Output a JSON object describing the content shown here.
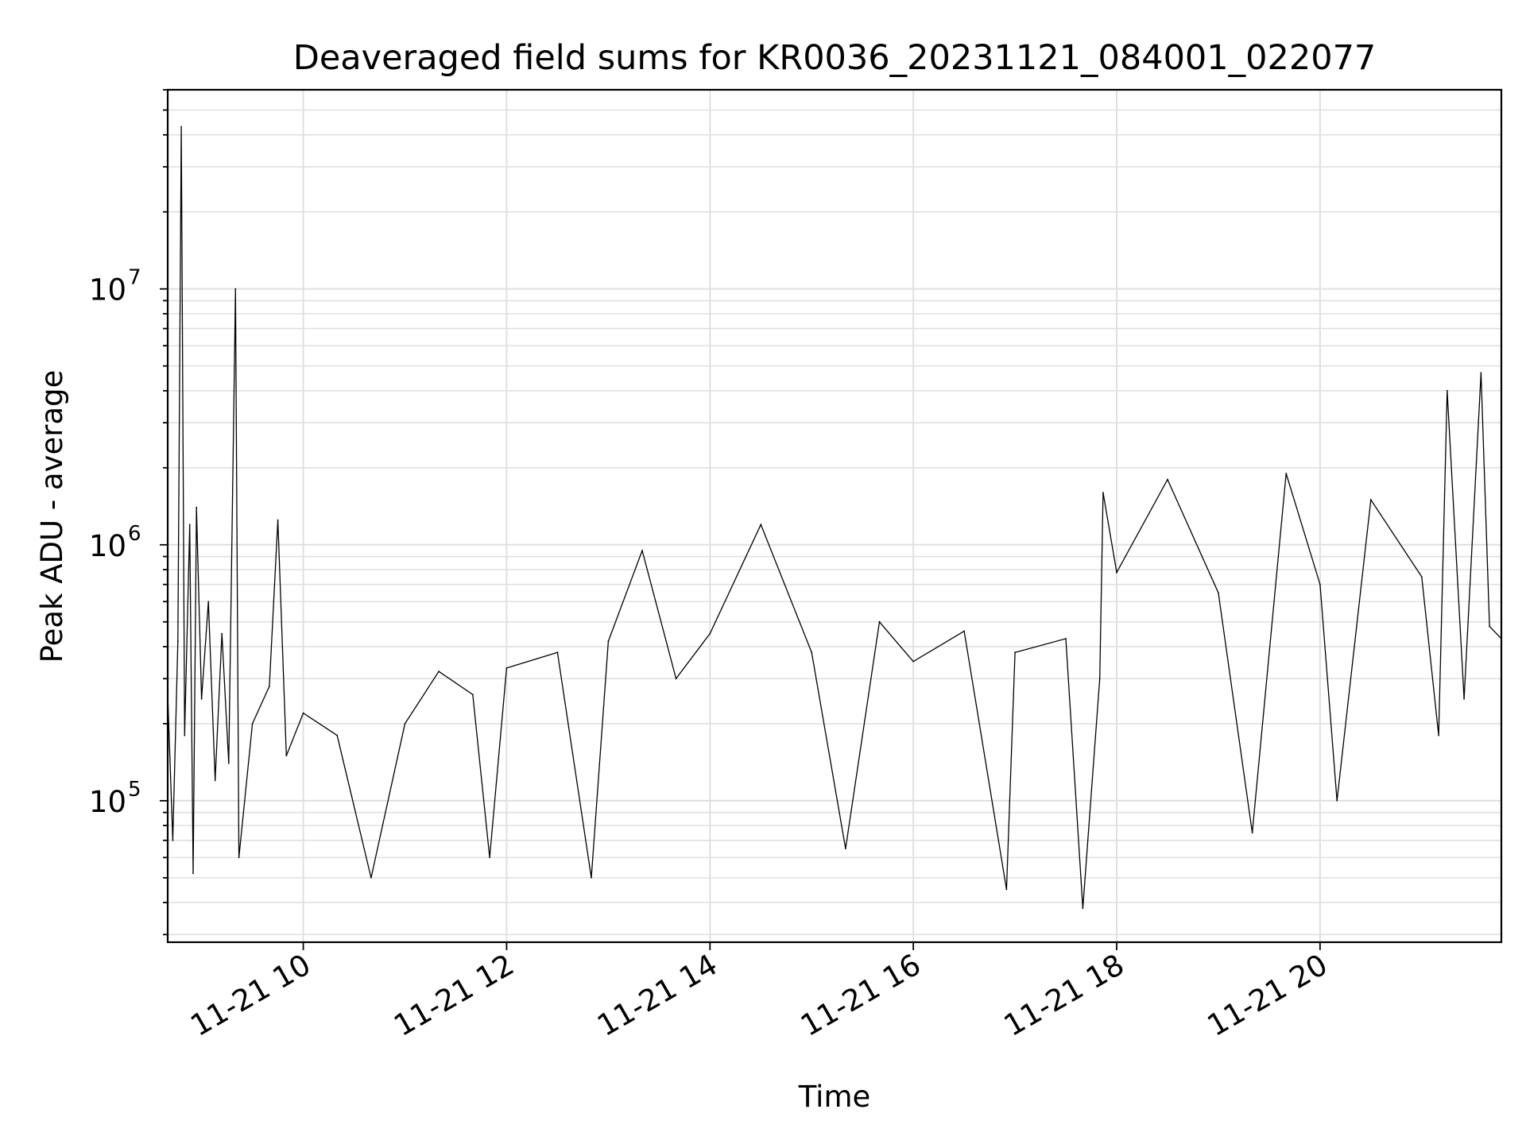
{
  "chart_data": {
    "type": "line",
    "title": "Deaveraged field sums for KR0036_20231121_084001_022077",
    "xlabel": "Time",
    "ylabel": "Peak ADU - average",
    "xscale": "time",
    "yscale": "log",
    "xlim": [
      "2023-11-21 08:40",
      "2023-11-21 21:47"
    ],
    "ylim": [
      28000,
      60000000
    ],
    "x_ticks": [
      "11-21 10",
      "11-21 12",
      "11-21 14",
      "11-21 16",
      "11-21 18",
      "11-21 20"
    ],
    "x_tick_times": [
      "2023-11-21 10:00",
      "2023-11-21 12:00",
      "2023-11-21 14:00",
      "2023-11-21 16:00",
      "2023-11-21 18:00",
      "2023-11-21 20:00"
    ],
    "y_ticks": [
      {
        "base": "10",
        "exp": "5",
        "value": 100000
      },
      {
        "base": "10",
        "exp": "6",
        "value": 1000000
      },
      {
        "base": "10",
        "exp": "7",
        "value": 10000000
      }
    ],
    "grid": true,
    "line_color": "#000000",
    "grid_color": "#e0e0e0",
    "series": [
      {
        "points": [
          [
            "2023-11-21 08:40",
            260000
          ],
          [
            "2023-11-21 08:43",
            70000
          ],
          [
            "2023-11-21 08:46",
            420000
          ],
          [
            "2023-11-21 08:48",
            43000000
          ],
          [
            "2023-11-21 08:50",
            180000
          ],
          [
            "2023-11-21 08:53",
            1200000
          ],
          [
            "2023-11-21 08:55",
            52000
          ],
          [
            "2023-11-21 08:57",
            1400000
          ],
          [
            "2023-11-21 09:00",
            250000
          ],
          [
            "2023-11-21 09:04",
            600000
          ],
          [
            "2023-11-21 09:08",
            120000
          ],
          [
            "2023-11-21 09:12",
            450000
          ],
          [
            "2023-11-21 09:16",
            140000
          ],
          [
            "2023-11-21 09:20",
            10000000
          ],
          [
            "2023-11-21 09:22",
            60000
          ],
          [
            "2023-11-21 09:30",
            200000
          ],
          [
            "2023-11-21 09:40",
            280000
          ],
          [
            "2023-11-21 09:50",
            150000
          ],
          [
            "2023-11-21 10:00",
            220000
          ],
          [
            "2023-11-21 09:45",
            1250000
          ],
          [
            "2023-11-21 10:20",
            180000
          ],
          [
            "2023-11-21 10:40",
            50000
          ],
          [
            "2023-11-21 11:00",
            200000
          ],
          [
            "2023-11-21 11:20",
            320000
          ],
          [
            "2023-11-21 11:40",
            260000
          ],
          [
            "2023-11-21 11:50",
            60000
          ],
          [
            "2023-11-21 12:00",
            330000
          ],
          [
            "2023-11-21 12:30",
            380000
          ],
          [
            "2023-11-21 12:50",
            50000
          ],
          [
            "2023-11-21 13:00",
            420000
          ],
          [
            "2023-11-21 13:20",
            950000
          ],
          [
            "2023-11-21 13:40",
            300000
          ],
          [
            "2023-11-21 14:00",
            450000
          ],
          [
            "2023-11-21 14:30",
            1200000
          ],
          [
            "2023-11-21 15:00",
            380000
          ],
          [
            "2023-11-21 15:20",
            65000
          ],
          [
            "2023-11-21 15:40",
            500000
          ],
          [
            "2023-11-21 16:00",
            350000
          ],
          [
            "2023-11-21 16:30",
            460000
          ],
          [
            "2023-11-21 16:55",
            45000
          ],
          [
            "2023-11-21 17:00",
            380000
          ],
          [
            "2023-11-21 17:30",
            430000
          ],
          [
            "2023-11-21 17:40",
            38000
          ],
          [
            "2023-11-21 17:50",
            300000
          ],
          [
            "2023-11-21 17:52",
            1600000
          ],
          [
            "2023-11-21 18:00",
            780000
          ],
          [
            "2023-11-21 18:30",
            1800000
          ],
          [
            "2023-11-21 19:00",
            650000
          ],
          [
            "2023-11-21 19:20",
            75000
          ],
          [
            "2023-11-21 19:40",
            1900000
          ],
          [
            "2023-11-21 20:00",
            700000
          ],
          [
            "2023-11-21 20:10",
            100000
          ],
          [
            "2023-11-21 20:30",
            1500000
          ],
          [
            "2023-11-21 21:00",
            750000
          ],
          [
            "2023-11-21 21:10",
            180000
          ],
          [
            "2023-11-21 21:15",
            4000000
          ],
          [
            "2023-11-21 21:25",
            250000
          ],
          [
            "2023-11-21 21:35",
            4700000
          ],
          [
            "2023-11-21 21:40",
            480000
          ],
          [
            "2023-11-21 21:47",
            430000
          ]
        ]
      }
    ]
  }
}
